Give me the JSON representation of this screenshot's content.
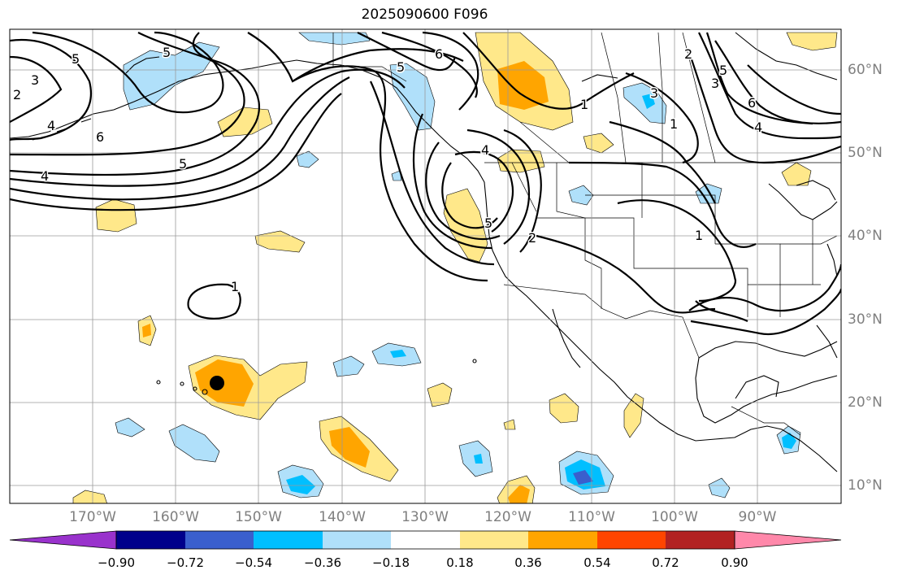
{
  "title": "2025090600 F096",
  "lat_labels": [
    "60°N",
    "50°N",
    "40°N",
    "30°N",
    "20°N",
    "10°N"
  ],
  "lon_labels": [
    "170°W",
    "160°W",
    "150°W",
    "140°W",
    "130°W",
    "120°W",
    "110°W",
    "100°W",
    "90°W"
  ],
  "contour_labels": [
    "2",
    "3",
    "4",
    "5",
    "6",
    "5",
    "4",
    "5",
    "6",
    "1",
    "2",
    "3",
    "4",
    "5",
    "6",
    "5",
    "4",
    "2",
    "5",
    "1",
    "1",
    "1",
    "3"
  ],
  "colorbar": {
    "ticks": [
      "−0.90",
      "−0.72",
      "−0.54",
      "−0.36",
      "−0.18",
      "0.18",
      "0.36",
      "0.54",
      "0.72",
      "0.90"
    ],
    "colors": [
      "#9932cc",
      "#00008b",
      "#3a5fcd",
      "#00bfff",
      "#b0e0fa",
      "#ffffff",
      "#ffe88a",
      "#ffa500",
      "#ff4500",
      "#b22222",
      "#ff88aa"
    ]
  },
  "colors": {
    "pos_light": "#ffe88a",
    "pos_mid": "#ffa500",
    "neg_light": "#b0e0fa",
    "neg_mid": "#00bfff",
    "neg_dark": "#3a5fcd"
  },
  "marker": "storm-center-dot"
}
